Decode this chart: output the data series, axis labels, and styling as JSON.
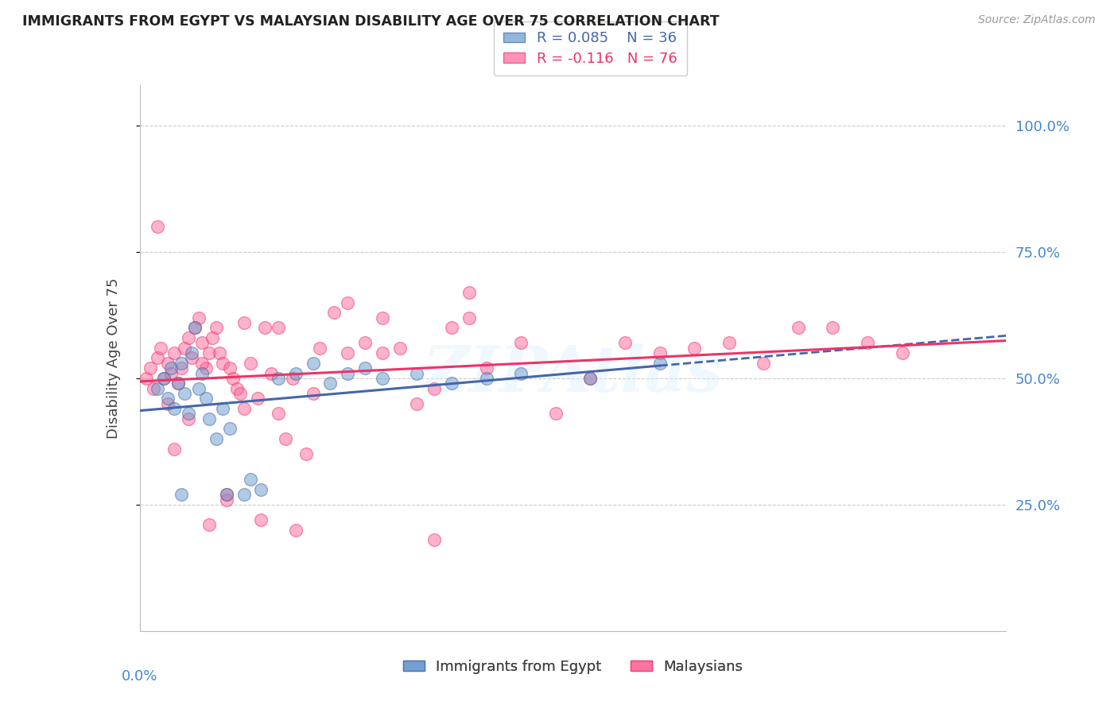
{
  "title": "IMMIGRANTS FROM EGYPT VS MALAYSIAN DISABILITY AGE OVER 75 CORRELATION CHART",
  "source": "Source: ZipAtlas.com",
  "ylabel": "Disability Age Over 75",
  "ytick_labels": [
    "100.0%",
    "75.0%",
    "50.0%",
    "25.0%"
  ],
  "ytick_positions": [
    1.0,
    0.75,
    0.5,
    0.25
  ],
  "xlim": [
    0.0,
    0.25
  ],
  "ylim": [
    0.0,
    1.08
  ],
  "color_blue": "#6699CC",
  "color_pink": "#FF6699",
  "color_blue_line": "#4466AA",
  "color_pink_line": "#EE3366",
  "egypt_x": [
    0.005,
    0.007,
    0.008,
    0.009,
    0.01,
    0.011,
    0.012,
    0.013,
    0.014,
    0.015,
    0.016,
    0.017,
    0.018,
    0.019,
    0.02,
    0.022,
    0.024,
    0.026,
    0.03,
    0.032,
    0.035,
    0.04,
    0.045,
    0.05,
    0.055,
    0.06,
    0.065,
    0.07,
    0.08,
    0.09,
    0.1,
    0.11,
    0.13,
    0.15,
    0.012,
    0.025
  ],
  "egypt_y": [
    0.48,
    0.5,
    0.46,
    0.52,
    0.44,
    0.49,
    0.53,
    0.47,
    0.43,
    0.55,
    0.6,
    0.48,
    0.51,
    0.46,
    0.42,
    0.38,
    0.44,
    0.4,
    0.27,
    0.3,
    0.28,
    0.5,
    0.51,
    0.53,
    0.49,
    0.51,
    0.52,
    0.5,
    0.51,
    0.49,
    0.5,
    0.51,
    0.5,
    0.53,
    0.27,
    0.27
  ],
  "malaysia_x": [
    0.002,
    0.003,
    0.004,
    0.005,
    0.006,
    0.007,
    0.008,
    0.009,
    0.01,
    0.011,
    0.012,
    0.013,
    0.014,
    0.015,
    0.016,
    0.017,
    0.018,
    0.019,
    0.02,
    0.021,
    0.022,
    0.023,
    0.024,
    0.025,
    0.026,
    0.027,
    0.028,
    0.029,
    0.03,
    0.032,
    0.034,
    0.036,
    0.038,
    0.04,
    0.042,
    0.044,
    0.048,
    0.052,
    0.056,
    0.06,
    0.065,
    0.07,
    0.075,
    0.08,
    0.085,
    0.09,
    0.095,
    0.1,
    0.11,
    0.12,
    0.13,
    0.14,
    0.15,
    0.16,
    0.17,
    0.18,
    0.19,
    0.2,
    0.21,
    0.22,
    0.008,
    0.014,
    0.018,
    0.025,
    0.03,
    0.04,
    0.05,
    0.07,
    0.095,
    0.005,
    0.01,
    0.02,
    0.035,
    0.045,
    0.06,
    0.085
  ],
  "malaysia_y": [
    0.5,
    0.52,
    0.48,
    0.54,
    0.56,
    0.5,
    0.53,
    0.51,
    0.55,
    0.49,
    0.52,
    0.56,
    0.58,
    0.54,
    0.6,
    0.62,
    0.57,
    0.52,
    0.55,
    0.58,
    0.6,
    0.55,
    0.53,
    0.27,
    0.52,
    0.5,
    0.48,
    0.47,
    0.44,
    0.53,
    0.46,
    0.6,
    0.51,
    0.43,
    0.38,
    0.5,
    0.35,
    0.56,
    0.63,
    0.55,
    0.57,
    0.55,
    0.56,
    0.45,
    0.48,
    0.6,
    0.62,
    0.52,
    0.57,
    0.43,
    0.5,
    0.57,
    0.55,
    0.56,
    0.57,
    0.53,
    0.6,
    0.6,
    0.57,
    0.55,
    0.45,
    0.42,
    0.53,
    0.26,
    0.61,
    0.6,
    0.47,
    0.62,
    0.67,
    0.8,
    0.36,
    0.21,
    0.22,
    0.2,
    0.65,
    0.18
  ]
}
